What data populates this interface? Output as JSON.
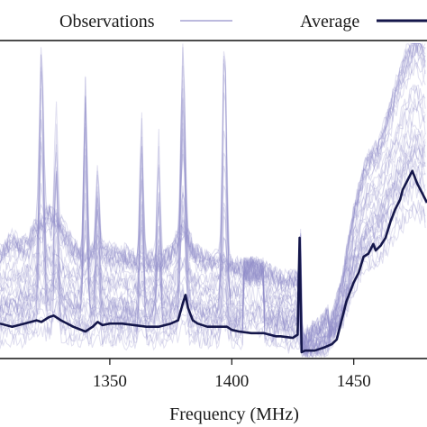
{
  "chart_data": {
    "type": "line",
    "title": "",
    "xlabel": "Frequency (MHz)",
    "ylabel": "",
    "xlim": [
      1305,
      1480
    ],
    "ylim": [
      0,
      1
    ],
    "x_ticks": [
      1350,
      1400,
      1450
    ],
    "x_tick_labels": [
      "1350",
      "1400",
      "1450"
    ],
    "grid": false,
    "legend": {
      "placement": "top",
      "entries": [
        "Observations",
        "Average"
      ]
    },
    "colors": {
      "observations": "#8e8cc8",
      "average": "#14164a",
      "axis": "#111111"
    },
    "series": [
      {
        "name": "Average",
        "points": [
          [
            1305,
            0.11
          ],
          [
            1310,
            0.1
          ],
          [
            1315,
            0.11
          ],
          [
            1320,
            0.12
          ],
          [
            1322,
            0.115
          ],
          [
            1325,
            0.13
          ],
          [
            1327,
            0.135
          ],
          [
            1330,
            0.12
          ],
          [
            1335,
            0.1
          ],
          [
            1340,
            0.085
          ],
          [
            1343,
            0.1
          ],
          [
            1345,
            0.115
          ],
          [
            1347,
            0.105
          ],
          [
            1350,
            0.11
          ],
          [
            1355,
            0.11
          ],
          [
            1360,
            0.105
          ],
          [
            1365,
            0.1
          ],
          [
            1370,
            0.1
          ],
          [
            1375,
            0.11
          ],
          [
            1378,
            0.12
          ],
          [
            1380,
            0.175
          ],
          [
            1381,
            0.2
          ],
          [
            1382,
            0.16
          ],
          [
            1384,
            0.12
          ],
          [
            1386,
            0.11
          ],
          [
            1390,
            0.1
          ],
          [
            1395,
            0.1
          ],
          [
            1398,
            0.1
          ],
          [
            1400,
            0.09
          ],
          [
            1403,
            0.085
          ],
          [
            1408,
            0.08
          ],
          [
            1413,
            0.08
          ],
          [
            1418,
            0.07
          ],
          [
            1420,
            0.07
          ],
          [
            1425,
            0.065
          ],
          [
            1427,
            0.075
          ],
          [
            1427.8,
            0.38
          ],
          [
            1428.6,
            0.02
          ],
          [
            1430,
            0.025
          ],
          [
            1434,
            0.025
          ],
          [
            1438,
            0.035
          ],
          [
            1441,
            0.045
          ],
          [
            1443,
            0.06
          ],
          [
            1445,
            0.12
          ],
          [
            1447,
            0.18
          ],
          [
            1450,
            0.24
          ],
          [
            1452,
            0.27
          ],
          [
            1454,
            0.32
          ],
          [
            1456,
            0.33
          ],
          [
            1458,
            0.36
          ],
          [
            1459,
            0.34
          ],
          [
            1461,
            0.355
          ],
          [
            1463,
            0.38
          ],
          [
            1465,
            0.43
          ],
          [
            1467,
            0.47
          ],
          [
            1469,
            0.5
          ],
          [
            1470,
            0.53
          ],
          [
            1472,
            0.56
          ],
          [
            1474,
            0.59
          ],
          [
            1476,
            0.55
          ],
          [
            1478,
            0.52
          ],
          [
            1480,
            0.49
          ]
        ]
      }
    ],
    "observations": {
      "name": "Observations",
      "count": 40,
      "baseline_points": [
        [
          1305,
          0.16
        ],
        [
          1310,
          0.18
        ],
        [
          1315,
          0.17
        ],
        [
          1320,
          0.2
        ],
        [
          1325,
          0.22
        ],
        [
          1330,
          0.2
        ],
        [
          1335,
          0.17
        ],
        [
          1340,
          0.15
        ],
        [
          1345,
          0.17
        ],
        [
          1350,
          0.16
        ],
        [
          1355,
          0.16
        ],
        [
          1360,
          0.15
        ],
        [
          1365,
          0.15
        ],
        [
          1370,
          0.15
        ],
        [
          1375,
          0.16
        ],
        [
          1380,
          0.2
        ],
        [
          1385,
          0.16
        ],
        [
          1390,
          0.15
        ],
        [
          1395,
          0.15
        ],
        [
          1400,
          0.14
        ],
        [
          1405,
          0.14
        ],
        [
          1410,
          0.14
        ],
        [
          1415,
          0.13
        ],
        [
          1420,
          0.12
        ],
        [
          1425,
          0.12
        ],
        [
          1427,
          0.12
        ],
        [
          1428.6,
          0.03
        ],
        [
          1432,
          0.04
        ],
        [
          1436,
          0.05
        ],
        [
          1440,
          0.07
        ],
        [
          1445,
          0.16
        ],
        [
          1450,
          0.32
        ],
        [
          1455,
          0.43
        ],
        [
          1460,
          0.46
        ],
        [
          1465,
          0.55
        ],
        [
          1470,
          0.64
        ],
        [
          1475,
          0.7
        ],
        [
          1480,
          0.66
        ]
      ],
      "spikes": [
        {
          "x": 1322,
          "peak": 0.96,
          "width": 1.2
        },
        {
          "x": 1328,
          "peak": 0.78,
          "width": 1.0
        },
        {
          "x": 1340,
          "peak": 0.86,
          "width": 1.0
        },
        {
          "x": 1345,
          "peak": 0.6,
          "width": 1.0
        },
        {
          "x": 1363,
          "peak": 0.75,
          "width": 1.0
        },
        {
          "x": 1370,
          "peak": 0.7,
          "width": 1.0
        },
        {
          "x": 1380,
          "peak": 0.96,
          "width": 1.3
        },
        {
          "x": 1397,
          "peak": 0.98,
          "width": 1.2
        },
        {
          "x": 1420,
          "peak": 0.22,
          "width": 1.2
        },
        {
          "x": 1428,
          "peak": 0.43,
          "width": 0.6
        }
      ],
      "plateaus": [
        {
          "x0": 1405,
          "x1": 1413,
          "low": 0.22,
          "high": 0.32
        }
      ]
    }
  },
  "legend": {
    "observations_label": "Observations",
    "average_label": "Average"
  }
}
